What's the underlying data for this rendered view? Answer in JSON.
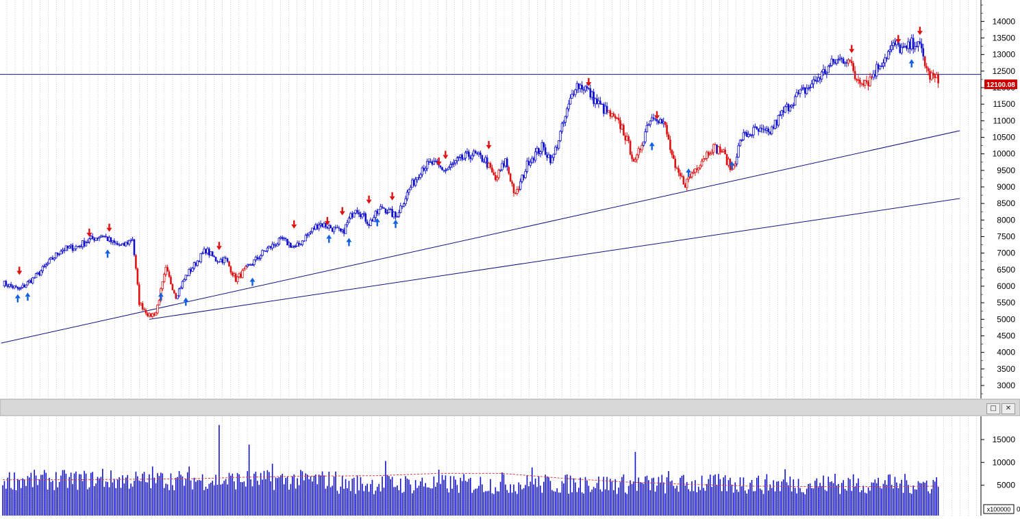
{
  "colors": {
    "up": "#1010d0",
    "down": "#e01010",
    "grid": "#b0b0b0",
    "trendline": "#101080",
    "price_badge_bg": "#cc0000",
    "price_badge_text": "#ffffff",
    "volume_bar": "#1212c8",
    "volume_ma": "#d04040",
    "separator": "#d8d8d8"
  },
  "price_panel": {
    "current_price_label": "12100.08",
    "horizontal_line_level": 12400,
    "y_axis_ticks": [
      "3000",
      "3500",
      "4000",
      "4500",
      "5000",
      "5500",
      "6000",
      "6500",
      "7000",
      "7500",
      "8000",
      "8500",
      "9000",
      "9500",
      "10000",
      "10500",
      "11000",
      "11500",
      "12000",
      "12500",
      "13000",
      "13500",
      "14000"
    ]
  },
  "volume_panel": {
    "y_axis_ticks": [
      "5000",
      "10000",
      "15000"
    ],
    "multiplier_label": "x100000",
    "multiplier_suffix": "0",
    "maximize_icon": "maximize-icon",
    "close_icon": "close-icon"
  },
  "chart_data": [
    {
      "type": "candlestick",
      "title": "",
      "x_scale": "weekly bars (approx.)",
      "ylim": [
        2700,
        14600
      ],
      "grid": true,
      "anchors": [
        [
          0,
          6100
        ],
        [
          10,
          5900
        ],
        [
          20,
          6300
        ],
        [
          35,
          7100
        ],
        [
          45,
          7200
        ],
        [
          52,
          7400
        ],
        [
          60,
          7550
        ],
        [
          66,
          7300
        ],
        [
          72,
          7200
        ],
        [
          78,
          7450
        ],
        [
          82,
          5500
        ],
        [
          88,
          5100
        ],
        [
          92,
          5200
        ],
        [
          98,
          6500
        ],
        [
          104,
          5700
        ],
        [
          110,
          6300
        ],
        [
          122,
          7100
        ],
        [
          128,
          6800
        ],
        [
          134,
          6800
        ],
        [
          140,
          6200
        ],
        [
          148,
          6600
        ],
        [
          158,
          7100
        ],
        [
          168,
          7400
        ],
        [
          176,
          7150
        ],
        [
          182,
          7500
        ],
        [
          190,
          7900
        ],
        [
          196,
          7800
        ],
        [
          204,
          7600
        ],
        [
          212,
          8400
        ],
        [
          220,
          7900
        ],
        [
          228,
          8400
        ],
        [
          236,
          8100
        ],
        [
          244,
          8900
        ],
        [
          252,
          9600
        ],
        [
          258,
          9700
        ],
        [
          266,
          9500
        ],
        [
          274,
          9800
        ],
        [
          282,
          10000
        ],
        [
          290,
          9800
        ],
        [
          296,
          9200
        ],
        [
          302,
          9800
        ],
        [
          308,
          8700
        ],
        [
          316,
          9800
        ],
        [
          324,
          10200
        ],
        [
          330,
          9800
        ],
        [
          338,
          11100
        ],
        [
          344,
          12100
        ],
        [
          350,
          12000
        ],
        [
          356,
          11600
        ],
        [
          364,
          11200
        ],
        [
          372,
          10800
        ],
        [
          380,
          9700
        ],
        [
          388,
          11000
        ],
        [
          392,
          11200
        ],
        [
          398,
          10800
        ],
        [
          404,
          9500
        ],
        [
          410,
          9100
        ],
        [
          418,
          9700
        ],
        [
          426,
          10200
        ],
        [
          432,
          10100
        ],
        [
          438,
          9500
        ],
        [
          444,
          10500
        ],
        [
          452,
          10700
        ],
        [
          460,
          10600
        ],
        [
          468,
          11200
        ],
        [
          476,
          11700
        ],
        [
          484,
          12000
        ],
        [
          492,
          12400
        ],
        [
          500,
          12800
        ],
        [
          508,
          12900
        ],
        [
          512,
          12300
        ],
        [
          520,
          12200
        ],
        [
          528,
          12800
        ],
        [
          536,
          13300
        ],
        [
          542,
          13100
        ],
        [
          548,
          13400
        ],
        [
          552,
          13100
        ],
        [
          556,
          12400
        ],
        [
          562,
          12200
        ]
      ],
      "signals": {
        "sell": [
          [
            10,
            6300
          ],
          [
            52,
            7450
          ],
          [
            64,
            7600
          ],
          [
            130,
            7050
          ],
          [
            175,
            7700
          ],
          [
            195,
            7800
          ],
          [
            204,
            8100
          ],
          [
            220,
            8450
          ],
          [
            234,
            8550
          ],
          [
            262,
            9600
          ],
          [
            266,
            9800
          ],
          [
            292,
            10100
          ],
          [
            352,
            12000
          ],
          [
            393,
            11000
          ],
          [
            510,
            13000
          ],
          [
            538,
            13300
          ],
          [
            551,
            13550
          ]
        ],
        "buy": [
          [
            9,
            5800
          ],
          [
            15,
            5850
          ],
          [
            63,
            7150
          ],
          [
            95,
            5850
          ],
          [
            110,
            5700
          ],
          [
            150,
            6300
          ],
          [
            196,
            7600
          ],
          [
            208,
            7500
          ],
          [
            225,
            8100
          ],
          [
            236,
            8050
          ],
          [
            390,
            10400
          ],
          [
            412,
            9600
          ],
          [
            438,
            9820
          ],
          [
            546,
            12900
          ]
        ]
      },
      "trendlines": [
        {
          "from": [
            -1,
            4280
          ],
          "to": [
            575,
            10700
          ]
        },
        {
          "from": [
            88,
            5000
          ],
          "to": [
            575,
            8650
          ]
        }
      ]
    },
    {
      "type": "bar",
      "title": "",
      "series": [
        {
          "values_x100000": [
            4800,
            8600,
            6000,
            9100,
            7600,
            9100,
            18200,
            13900,
            9700,
            8000,
            10300,
            8400,
            7800,
            8900,
            6800,
            12300,
            8100,
            7100,
            6700,
            8500,
            7500,
            6100,
            5800,
            6400,
            5400,
            7700,
            5700,
            7000,
            6100,
            8300,
            6100,
            6200,
            5100,
            7000,
            6300,
            8200,
            5700,
            6700
          ]
        }
      ],
      "notes": "volume per bar, mostly 3000-8000; moving average declines from ~6200 to ~4800",
      "ma_values": [
        6200,
        6200,
        6300,
        6400,
        6800,
        7000,
        7100,
        7600,
        7600,
        6500,
        5700,
        5200,
        4800,
        4700,
        4700,
        4800
      ],
      "ylim": [
        0,
        19500
      ]
    }
  ]
}
